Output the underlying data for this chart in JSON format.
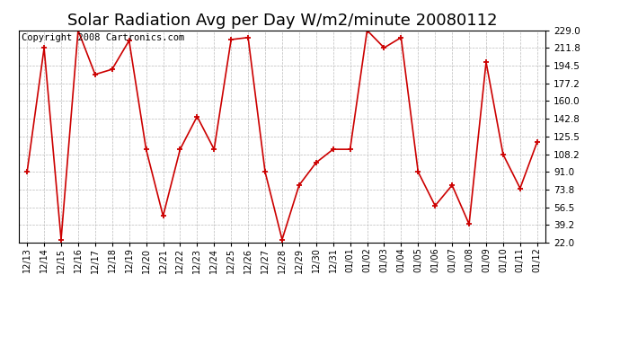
{
  "title": "Solar Radiation Avg per Day W/m2/minute 20080112",
  "copyright": "Copyright 2008 Cartronics.com",
  "x_labels": [
    "12/13",
    "12/14",
    "12/15",
    "12/16",
    "12/17",
    "12/18",
    "12/19",
    "12/20",
    "12/21",
    "12/22",
    "12/23",
    "12/24",
    "12/25",
    "12/26",
    "12/27",
    "12/28",
    "12/29",
    "12/30",
    "12/31",
    "01/01",
    "01/02",
    "01/03",
    "01/04",
    "01/05",
    "01/06",
    "01/07",
    "01/08",
    "01/09",
    "01/10",
    "01/11",
    "01/12"
  ],
  "y_values": [
    91.0,
    211.8,
    25.0,
    229.0,
    186.0,
    191.0,
    219.0,
    113.0,
    48.0,
    113.0,
    145.0,
    113.0,
    220.0,
    222.0,
    91.0,
    25.0,
    78.0,
    100.0,
    113.0,
    113.0,
    229.0,
    212.0,
    222.0,
    91.0,
    58.0,
    78.0,
    40.0,
    198.0,
    108.0,
    75.0,
    120.0
  ],
  "ylim_min": 22.0,
  "ylim_max": 229.0,
  "yticks": [
    22.0,
    39.2,
    56.5,
    73.8,
    91.0,
    108.2,
    125.5,
    142.8,
    160.0,
    177.2,
    194.5,
    211.8,
    229.0
  ],
  "line_color": "#cc0000",
  "bg_color": "#ffffff",
  "grid_color": "#bbbbbb",
  "title_fontsize": 13,
  "copyright_fontsize": 7.5
}
